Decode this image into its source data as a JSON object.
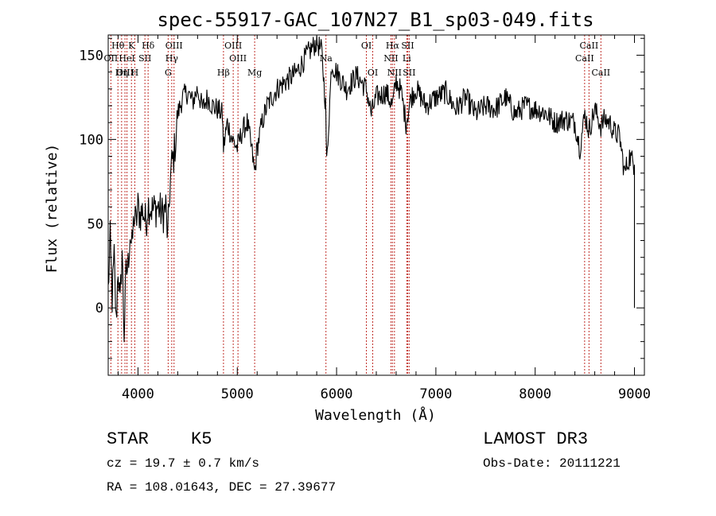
{
  "chart_data": {
    "type": "line",
    "title": "spec-55917-GAC_107N27_B1_sp03-049.fits",
    "xlabel": "Wavelength (Å)",
    "ylabel": "Flux (relative)",
    "xlim": [
      3700,
      9100
    ],
    "ylim": [
      -40,
      162
    ],
    "xticks": [
      4000,
      5000,
      6000,
      7000,
      8000,
      9000
    ],
    "xtick_labels": [
      "4000",
      "5000",
      "6000",
      "7000",
      "8000",
      "9000"
    ],
    "yticks": [
      0,
      50,
      100,
      150
    ],
    "ytick_labels": [
      "0",
      "50",
      "100",
      "150"
    ],
    "grid": false,
    "series": [
      {
        "name": "spectrum",
        "x": [
          3700,
          3720,
          3740,
          3760,
          3780,
          3800,
          3820,
          3840,
          3860,
          3880,
          3900,
          3920,
          3940,
          3960,
          3980,
          4000,
          4020,
          4050,
          4080,
          4100,
          4150,
          4200,
          4250,
          4280,
          4300,
          4320,
          4340,
          4360,
          4380,
          4400,
          4450,
          4500,
          4550,
          4600,
          4650,
          4700,
          4750,
          4800,
          4850,
          4861,
          4900,
          4950,
          5000,
          5050,
          5100,
          5150,
          5175,
          5200,
          5250,
          5300,
          5400,
          5500,
          5600,
          5700,
          5800,
          5850,
          5890,
          5900,
          5950,
          6000,
          6100,
          6200,
          6300,
          6350,
          6400,
          6500,
          6563,
          6600,
          6650,
          6700,
          6750,
          6800,
          6900,
          7000,
          7100,
          7200,
          7300,
          7400,
          7500,
          7600,
          7700,
          7800,
          7900,
          8000,
          8100,
          8200,
          8300,
          8400,
          8450,
          8500,
          8542,
          8600,
          8662,
          8700,
          8750,
          8800,
          8850,
          8900,
          8950,
          9000
        ],
        "values": [
          10,
          40,
          5,
          30,
          -10,
          25,
          0,
          35,
          -15,
          20,
          25,
          45,
          35,
          55,
          50,
          60,
          55,
          58,
          50,
          62,
          58,
          60,
          55,
          60,
          40,
          70,
          85,
          90,
          100,
          115,
          125,
          128,
          122,
          130,
          118,
          125,
          120,
          118,
          115,
          95,
          110,
          100,
          95,
          105,
          110,
          92,
          80,
          95,
          110,
          120,
          130,
          135,
          140,
          150,
          158,
          152,
          120,
          85,
          145,
          140,
          130,
          138,
          130,
          115,
          125,
          128,
          120,
          135,
          128,
          110,
          125,
          130,
          120,
          125,
          128,
          118,
          125,
          115,
          120,
          118,
          125,
          115,
          120,
          118,
          116,
          110,
          112,
          110,
          95,
          115,
          105,
          118,
          108,
          112,
          110,
          104,
          102,
          80,
          90,
          85
        ]
      }
    ],
    "line_labels": [
      {
        "label": "Hθ",
        "x": 3798,
        "row": 1
      },
      {
        "label": "OII",
        "x": 3727,
        "row": 2
      },
      {
        "label": "OIII",
        "x": 3869,
        "row": 3
      },
      {
        "label": "K",
        "x": 3934,
        "row": 1
      },
      {
        "label": "HeI",
        "x": 3889,
        "row": 2
      },
      {
        "label": "Hη",
        "x": 3835,
        "row": 3
      },
      {
        "label": "H",
        "x": 3968,
        "row": 3
      },
      {
        "label": "Hδ",
        "x": 4102,
        "row": 1
      },
      {
        "label": "SII",
        "x": 4070,
        "row": 2
      },
      {
        "label": "OIII",
        "x": 4363,
        "row": 1
      },
      {
        "label": "Hγ",
        "x": 4340,
        "row": 2
      },
      {
        "label": "G",
        "x": 4304,
        "row": 3
      },
      {
        "label": "Hβ",
        "x": 4861,
        "row": 3
      },
      {
        "label": "OIII",
        "x": 4959,
        "row": 1
      },
      {
        "label": "OIII",
        "x": 5007,
        "row": 2
      },
      {
        "label": "Mg",
        "x": 5175,
        "row": 3
      },
      {
        "label": "Na",
        "x": 5893,
        "row": 2
      },
      {
        "label": "OI",
        "x": 6300,
        "row": 1
      },
      {
        "label": "OI",
        "x": 6364,
        "row": 3
      },
      {
        "label": "Hα",
        "x": 6563,
        "row": 1
      },
      {
        "label": "NII",
        "x": 6548,
        "row": 2
      },
      {
        "label": "NII",
        "x": 6583,
        "row": 3
      },
      {
        "label": "SII",
        "x": 6716,
        "row": 1
      },
      {
        "label": "Li",
        "x": 6707,
        "row": 2
      },
      {
        "label": "SII",
        "x": 6731,
        "row": 3
      },
      {
        "label": "CaII",
        "x": 8542,
        "row": 1
      },
      {
        "label": "CaII",
        "x": 8498,
        "row": 2
      },
      {
        "label": "CaII",
        "x": 8662,
        "row": 3
      }
    ]
  },
  "info": {
    "class": "STAR",
    "subclass": "K5",
    "survey": "LAMOST DR3",
    "cz": "cz = 19.7 ± 0.7 km/s",
    "obs_date": "Obs-Date: 20111221",
    "radec": "RA = 108.01643, DEC =  27.39677"
  }
}
